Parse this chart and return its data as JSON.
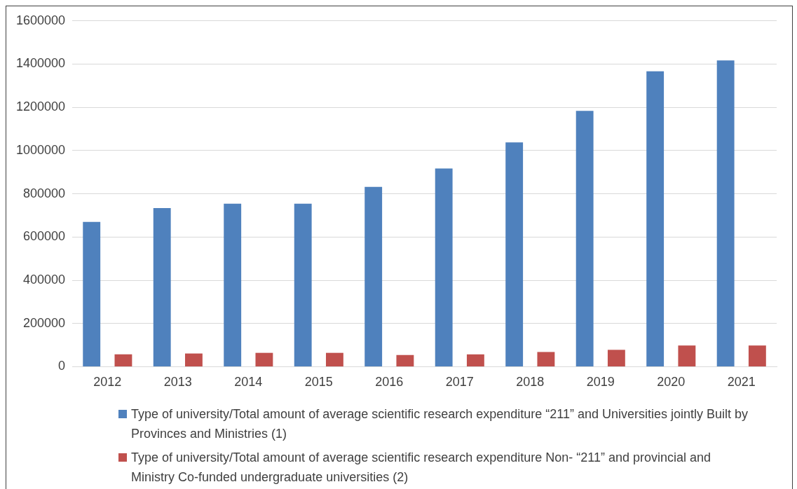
{
  "chart_data": {
    "type": "bar",
    "categories": [
      "2012",
      "2013",
      "2014",
      "2015",
      "2016",
      "2017",
      "2018",
      "2019",
      "2020",
      "2021"
    ],
    "series": [
      {
        "name": "Type of university/Total amount of average scientific research expenditure “211” and Universities jointly Built by Provinces and Ministries (1)",
        "color": "#4f81bd",
        "values": [
          670000,
          734000,
          754000,
          754000,
          832000,
          917000,
          1038000,
          1184000,
          1367000,
          1417000
        ]
      },
      {
        "name": "Type of university/Total amount of average scientific research expenditure Non- “211” and provincial and Ministry Co-funded undergraduate universities (2)",
        "color": "#c0504d",
        "values": [
          57000,
          61000,
          64000,
          64000,
          54000,
          57000,
          68000,
          78000,
          98000,
          98000
        ]
      }
    ],
    "ylim": [
      0,
      1600000
    ],
    "yticks": [
      0,
      200000,
      400000,
      600000,
      800000,
      1000000,
      1200000,
      1400000,
      1600000
    ],
    "grid": "y",
    "legend": "bottom"
  }
}
